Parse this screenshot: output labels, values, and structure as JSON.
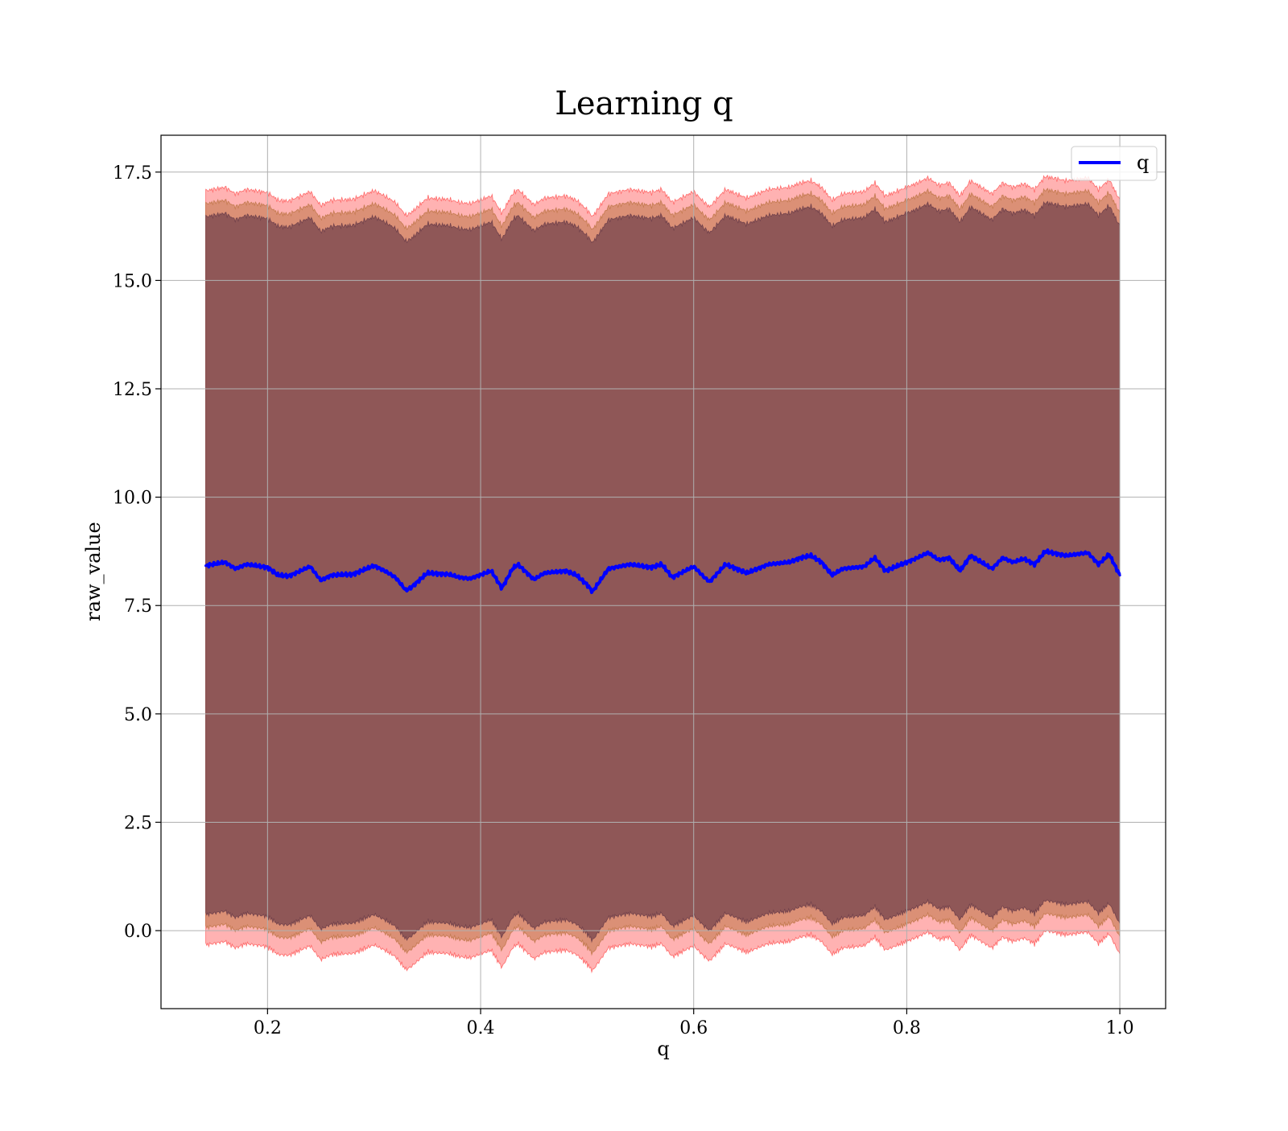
{
  "chart_data": {
    "type": "line",
    "title": "Learning q",
    "xlabel": "q",
    "ylabel": "raw_value",
    "xlim": [
      0.1,
      1.043
    ],
    "ylim": [
      -1.8,
      18.35
    ],
    "x_ticks": [
      "0.2",
      "0.4",
      "0.6",
      "0.8",
      "1.0"
    ],
    "y_ticks": [
      "0.0",
      "2.5",
      "5.0",
      "7.5",
      "10.0",
      "12.5",
      "15.0",
      "17.5"
    ],
    "grid": true,
    "legend": {
      "position": "top-right",
      "entries": [
        "q"
      ]
    },
    "colors": {
      "line": "#0000ff",
      "band_outer": "#ff0000",
      "band_middle": "#a05a14",
      "band_inner": "#3c1a36",
      "grid": "#b0b0b0"
    },
    "series": [
      {
        "name": "q",
        "x": [
          0.142,
          0.16,
          0.17,
          0.18,
          0.2,
          0.21,
          0.22,
          0.24,
          0.25,
          0.26,
          0.28,
          0.3,
          0.31,
          0.32,
          0.33,
          0.335,
          0.35,
          0.37,
          0.38,
          0.39,
          0.41,
          0.42,
          0.43,
          0.435,
          0.45,
          0.46,
          0.48,
          0.49,
          0.5,
          0.505,
          0.52,
          0.54,
          0.56,
          0.57,
          0.58,
          0.6,
          0.61,
          0.615,
          0.63,
          0.65,
          0.67,
          0.69,
          0.7,
          0.71,
          0.72,
          0.73,
          0.74,
          0.76,
          0.77,
          0.78,
          0.8,
          0.81,
          0.82,
          0.83,
          0.84,
          0.85,
          0.86,
          0.87,
          0.88,
          0.89,
          0.9,
          0.91,
          0.92,
          0.93,
          0.95,
          0.97,
          0.98,
          0.99,
          1.0
        ],
        "values": [
          8.42,
          8.5,
          8.35,
          8.45,
          8.38,
          8.2,
          8.18,
          8.4,
          8.08,
          8.2,
          8.22,
          8.42,
          8.3,
          8.15,
          7.85,
          7.92,
          8.25,
          8.22,
          8.15,
          8.12,
          8.3,
          7.9,
          8.35,
          8.45,
          8.1,
          8.25,
          8.3,
          8.2,
          7.98,
          7.82,
          8.35,
          8.45,
          8.38,
          8.45,
          8.15,
          8.4,
          8.15,
          8.05,
          8.45,
          8.25,
          8.45,
          8.5,
          8.6,
          8.65,
          8.5,
          8.2,
          8.35,
          8.4,
          8.6,
          8.3,
          8.5,
          8.6,
          8.72,
          8.55,
          8.6,
          8.3,
          8.65,
          8.5,
          8.35,
          8.6,
          8.5,
          8.58,
          8.45,
          8.75,
          8.65,
          8.72,
          8.45,
          8.68,
          8.2
        ]
      }
    ]
  }
}
